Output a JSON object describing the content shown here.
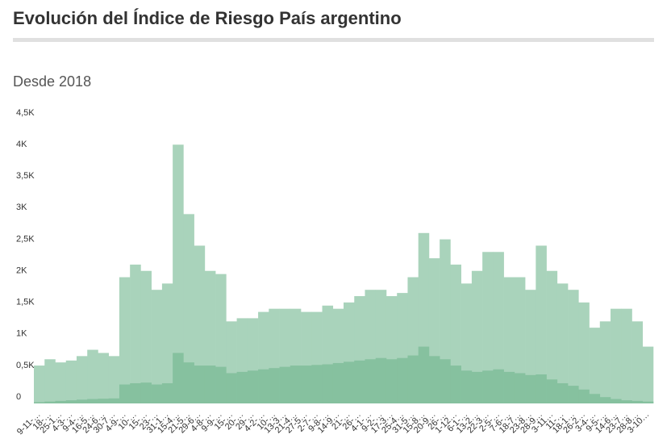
{
  "chart_data": {
    "type": "bar",
    "title": "Evolución del Índice de Riesgo País argentino",
    "subtitle": "Desde 2018",
    "categories": [
      "9-11-…",
      "18-…",
      "25-1…",
      "4-3-…",
      "9-4-…",
      "16-5…",
      "24-6…",
      "30-7…",
      "4-9-…",
      "10-…",
      "15-…",
      "23-…",
      "31-1…",
      "15-4…",
      "21-5…",
      "29-6…",
      "4-8-…",
      "9-9-…",
      "15-…",
      "20-…",
      "29-…",
      "4-2-…",
      "10-…",
      "13-3…",
      "21-4…",
      "27-5…",
      "2-7-…",
      "9-8-…",
      "14-9…",
      "21-…",
      "26-…",
      "4-1-…",
      "9-2-…",
      "17-3…",
      "25-4…",
      "31-5…",
      "15-8…",
      "20-9…",
      "26-…",
      "1-12…",
      "6-1-…",
      "13-2…",
      "22-3…",
      "2-5-…",
      "7-6-…",
      "18-7…",
      "23-8…",
      "28-9…",
      "3-11…",
      "11-…",
      "18-1…",
      "26-2…",
      "3-4-…",
      "9-5-…",
      "14-6…",
      "23-7…",
      "28-8…",
      "3-10…"
    ],
    "series": [
      {
        "color": "#a9d3bb",
        "values": [
          600,
          700,
          650,
          680,
          750,
          850,
          800,
          750,
          2000,
          2200,
          2100,
          1800,
          1900,
          4100,
          3000,
          2500,
          2100,
          2050,
          1300,
          1350,
          1350,
          1450,
          1500,
          1500,
          1500,
          1450,
          1450,
          1550,
          1500,
          1600,
          1700,
          1800,
          1800,
          1700,
          1750,
          2000,
          2700,
          2300,
          2600,
          2200,
          1900,
          2100,
          2400,
          2400,
          2000,
          2000,
          1800,
          2500,
          2100,
          1900,
          1800,
          1600,
          1200,
          1300,
          1500,
          1500,
          1300,
          900
        ]
      },
      {
        "color": "#86c19f",
        "values": [
          20,
          30,
          40,
          50,
          60,
          70,
          75,
          80,
          300,
          320,
          330,
          300,
          320,
          800,
          650,
          600,
          600,
          580,
          480,
          500,
          520,
          540,
          560,
          580,
          600,
          600,
          610,
          620,
          640,
          660,
          680,
          700,
          720,
          700,
          720,
          760,
          900,
          750,
          700,
          600,
          520,
          500,
          520,
          540,
          500,
          480,
          450,
          460,
          380,
          320,
          280,
          220,
          150,
          100,
          70,
          50,
          40,
          30
        ]
      }
    ],
    "ylim": [
      0,
      4500
    ],
    "yticks": [
      0,
      {
        "value": 500,
        "label": "0,5K"
      },
      {
        "value": 1000,
        "label": "1K"
      },
      {
        "value": 1500,
        "label": "1,5K"
      },
      {
        "value": 2000,
        "label": "2K"
      },
      {
        "value": 2500,
        "label": "2,5K"
      },
      {
        "value": 3000,
        "label": "3K"
      },
      {
        "value": 3500,
        "label": "3,5K"
      },
      {
        "value": 4000,
        "label": "4K"
      },
      {
        "value": 4500,
        "label": "4,5K"
      }
    ]
  }
}
